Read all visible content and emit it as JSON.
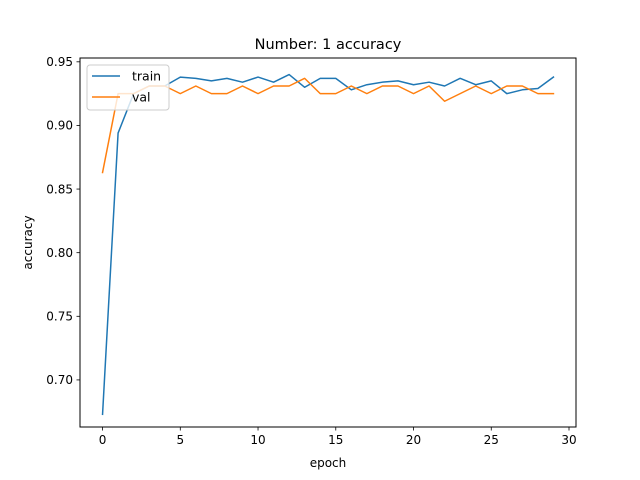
{
  "chart_data": {
    "type": "line",
    "title": "Number: 1 accuracy",
    "xlabel": "epoch",
    "ylabel": "accuracy",
    "xlim": [
      -1.45,
      30.45
    ],
    "ylim": [
      0.663,
      0.953
    ],
    "xticks": [
      0,
      5,
      10,
      15,
      20,
      25,
      30
    ],
    "yticks": [
      0.7,
      0.75,
      0.8,
      0.85,
      0.9,
      0.95
    ],
    "ytick_labels": [
      "0.70",
      "0.75",
      "0.80",
      "0.85",
      "0.90",
      "0.95"
    ],
    "grid": false,
    "legend": "upper-left",
    "x": [
      0,
      1,
      2,
      3,
      4,
      5,
      6,
      7,
      8,
      9,
      10,
      11,
      12,
      13,
      14,
      15,
      16,
      17,
      18,
      19,
      20,
      21,
      22,
      23,
      24,
      25,
      26,
      27,
      28,
      29
    ],
    "series": [
      {
        "name": "train",
        "color": "#1f77b4",
        "values": [
          0.673,
          0.894,
          0.925,
          0.931,
          0.931,
          0.938,
          0.937,
          0.935,
          0.937,
          0.934,
          0.938,
          0.934,
          0.94,
          0.93,
          0.937,
          0.937,
          0.928,
          0.932,
          0.934,
          0.935,
          0.932,
          0.934,
          0.931,
          0.937,
          0.932,
          0.935,
          0.925,
          0.928,
          0.929,
          0.938
        ]
      },
      {
        "name": "val",
        "color": "#ff7f0e",
        "values": [
          0.863,
          0.925,
          0.925,
          0.931,
          0.931,
          0.925,
          0.931,
          0.925,
          0.925,
          0.931,
          0.925,
          0.931,
          0.931,
          0.937,
          0.925,
          0.925,
          0.931,
          0.925,
          0.931,
          0.931,
          0.925,
          0.931,
          0.919,
          0.925,
          0.931,
          0.925,
          0.931,
          0.931,
          0.925,
          0.925
        ]
      }
    ]
  }
}
